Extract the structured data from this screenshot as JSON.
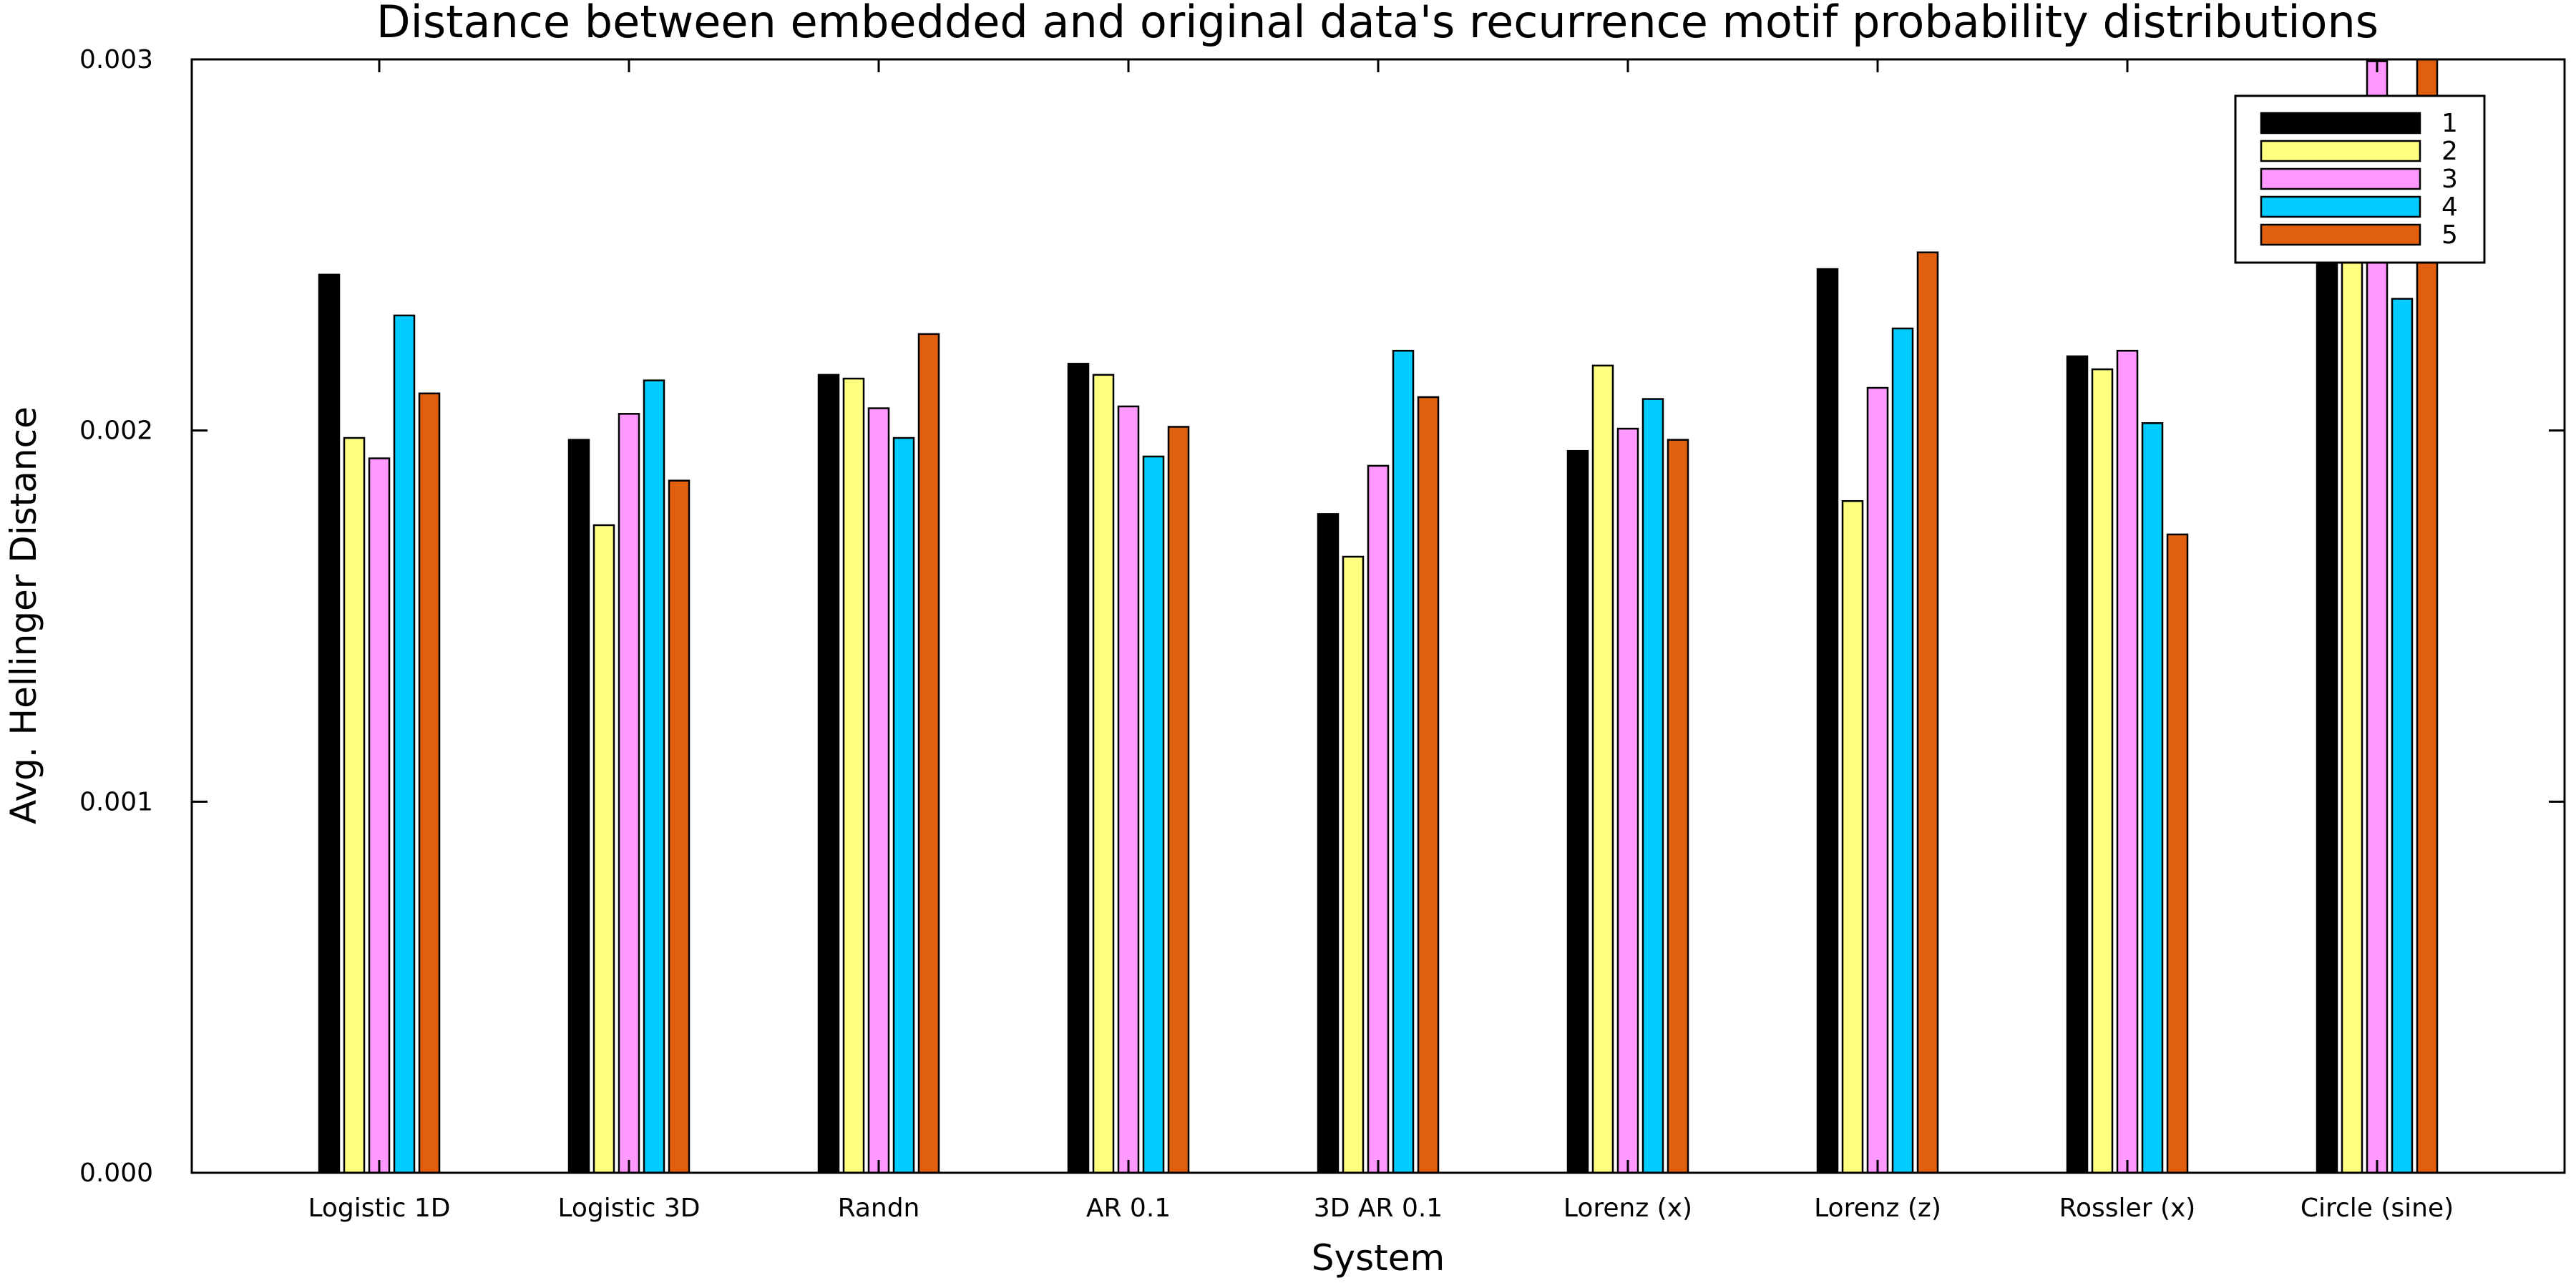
{
  "chart_data": {
    "type": "bar",
    "title": "Distance between embedded and original data's recurrence motif probability distributions",
    "xlabel": "System",
    "ylabel": "Avg. Hellinger Distance",
    "ylim": [
      0,
      0.003
    ],
    "yticks": [
      "0.000",
      "0.001",
      "0.002",
      "0.003"
    ],
    "yticks_values": [
      0,
      0.001,
      0.002,
      0.003
    ],
    "grid": false,
    "legend_position": "top-right",
    "categories": [
      "Logistic 1D",
      "Logistic 3D",
      "Randn",
      "AR 0.1",
      "3D AR 0.1",
      "Lorenz (x)",
      "Lorenz (z)",
      "Rossler (x)",
      "Circle (sine)"
    ],
    "series": [
      {
        "name": "1",
        "color": "#000000",
        "values": [
          0.00242,
          0.001975,
          0.00215,
          0.00218,
          0.001775,
          0.001945,
          0.002435,
          0.0022,
          0.00249
        ]
      },
      {
        "name": "2",
        "color": "#ffff80",
        "values": [
          0.00198,
          0.001745,
          0.00214,
          0.00215,
          0.00166,
          0.002175,
          0.00181,
          0.002165,
          0.00247
        ]
      },
      {
        "name": "3",
        "color": "#ff99ff",
        "values": [
          0.001925,
          0.002045,
          0.00206,
          0.002065,
          0.001905,
          0.002005,
          0.002115,
          0.002215,
          0.002995
        ]
      },
      {
        "name": "4",
        "color": "#00ccff",
        "values": [
          0.00231,
          0.002135,
          0.00198,
          0.00193,
          0.002215,
          0.002085,
          0.002275,
          0.00202,
          0.002355
        ]
      },
      {
        "name": "5",
        "color": "#e06010",
        "values": [
          0.0021,
          0.001865,
          0.00226,
          0.00201,
          0.00209,
          0.001975,
          0.00248,
          0.00172,
          0.003
        ]
      }
    ]
  }
}
